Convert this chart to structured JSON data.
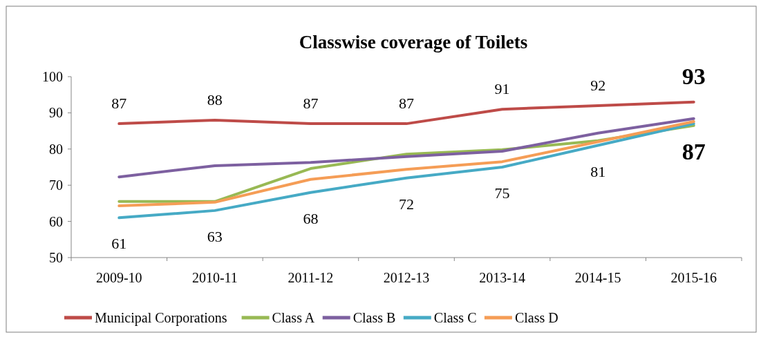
{
  "chart_data": {
    "type": "line",
    "title": "Classwise coverage of Toilets",
    "categories": [
      "2009-10",
      "2010-11",
      "2011-12",
      "2012-13",
      "2013-14",
      "2014-15",
      "2015-16"
    ],
    "series": [
      {
        "name": "Municipal Corporations",
        "color": "#be4b48",
        "values": [
          87,
          88,
          87,
          87,
          91,
          92,
          93
        ],
        "value_labels": [
          "87",
          "88",
          "87",
          "87",
          "91",
          "92",
          "93"
        ]
      },
      {
        "name": "Class A",
        "color": "#98b954",
        "values": [
          65.5,
          65.5,
          74.6,
          78.6,
          79.8,
          82.3,
          86.5
        ]
      },
      {
        "name": "Class B",
        "color": "#7d60a0",
        "values": [
          72.3,
          75.4,
          76.3,
          77.9,
          79.4,
          84.4,
          88.4
        ]
      },
      {
        "name": "Class C",
        "color": "#46aac5",
        "values": [
          61,
          63,
          68,
          72,
          75,
          81,
          87
        ],
        "value_labels": [
          "61",
          "63",
          "68",
          "72",
          "75",
          "81",
          "87"
        ]
      },
      {
        "name": "Class D",
        "color": "#f59d56",
        "values": [
          64.3,
          65.3,
          71.6,
          74.4,
          76.5,
          82,
          87.6
        ]
      }
    ],
    "ylim": [
      50,
      100
    ],
    "yticks": [
      50,
      60,
      70,
      80,
      90,
      100
    ],
    "grid": false,
    "legend": "bottom",
    "line_style": "solid"
  }
}
